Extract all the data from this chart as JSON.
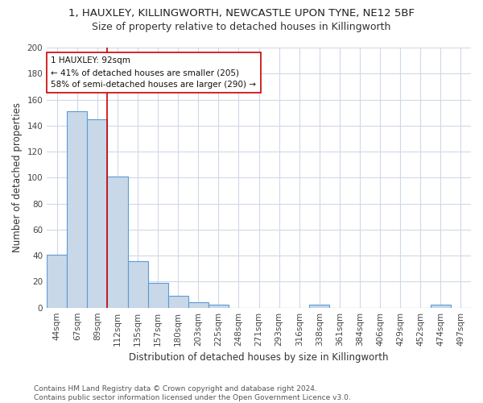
{
  "title1": "1, HAUXLEY, KILLINGWORTH, NEWCASTLE UPON TYNE, NE12 5BF",
  "title2": "Size of property relative to detached houses in Killingworth",
  "xlabel": "Distribution of detached houses by size in Killingworth",
  "ylabel": "Number of detached properties",
  "bar_labels": [
    "44sqm",
    "67sqm",
    "89sqm",
    "112sqm",
    "135sqm",
    "157sqm",
    "180sqm",
    "203sqm",
    "225sqm",
    "248sqm",
    "271sqm",
    "293sqm",
    "316sqm",
    "338sqm",
    "361sqm",
    "384sqm",
    "406sqm",
    "429sqm",
    "452sqm",
    "474sqm",
    "497sqm"
  ],
  "bar_values": [
    41,
    151,
    145,
    101,
    36,
    19,
    9,
    4,
    2,
    0,
    0,
    0,
    0,
    2,
    0,
    0,
    0,
    0,
    0,
    2,
    0
  ],
  "bar_color": "#c8d8e8",
  "bar_edge_color": "#5b9bd5",
  "grid_color": "#d0d8e8",
  "background_color": "#ffffff",
  "vline_x": 2.5,
  "vline_color": "#cc0000",
  "annotation_line1": "1 HAUXLEY: 92sqm",
  "annotation_line2": "← 41% of detached houses are smaller (205)",
  "annotation_line3": "58% of semi-detached houses are larger (290) →",
  "annotation_box_color": "#ffffff",
  "annotation_box_edge": "#cc0000",
  "ylim": [
    0,
    200
  ],
  "yticks": [
    0,
    20,
    40,
    60,
    80,
    100,
    120,
    140,
    160,
    180,
    200
  ],
  "footer_text": "Contains HM Land Registry data © Crown copyright and database right 2024.\nContains public sector information licensed under the Open Government Licence v3.0.",
  "title_fontsize": 9.5,
  "subtitle_fontsize": 9,
  "axis_fontsize": 8.5,
  "tick_fontsize": 7.5,
  "annotation_fontsize": 7.5,
  "footer_fontsize": 6.5
}
